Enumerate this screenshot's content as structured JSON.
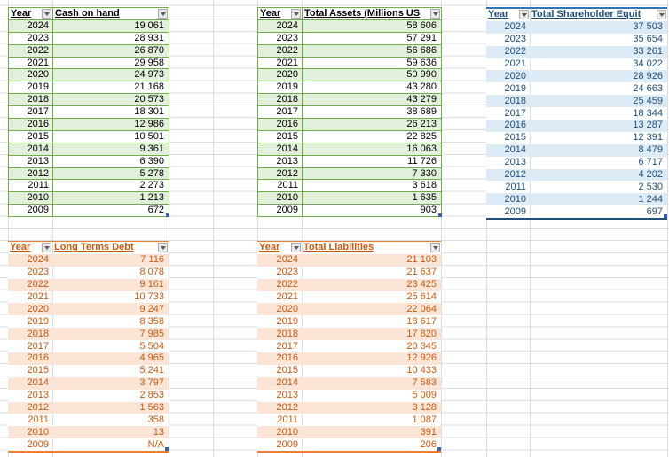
{
  "app": {
    "type": "spreadsheet-grid"
  },
  "colors": {
    "gridline": "#DADFE4",
    "green_border": "#70AD47",
    "green_band": "#E2EFDA",
    "green_text": "#000000",
    "blue_border": "#2E75B6",
    "blue_border_bottom": "#1F4E78",
    "blue_band": "#DDEBF7",
    "blue_text": "#1F4E78",
    "orange_border": "#ED7D31",
    "orange_band": "#FCE4D6",
    "orange_text": "#C55A11",
    "resize_handle": "#3A5FAC"
  },
  "tables": [
    {
      "id": "cash-on-hand",
      "theme": "green",
      "columns": [
        "Year",
        "Cash on hand"
      ],
      "rows": [
        {
          "year": "2024",
          "value": "19 061"
        },
        {
          "year": "2023",
          "value": "28 931"
        },
        {
          "year": "2022",
          "value": "26 870"
        },
        {
          "year": "2021",
          "value": "29 958"
        },
        {
          "year": "2020",
          "value": "24 973"
        },
        {
          "year": "2019",
          "value": "21 168"
        },
        {
          "year": "2018",
          "value": "20 573"
        },
        {
          "year": "2017",
          "value": "18 301"
        },
        {
          "year": "2016",
          "value": "12 986"
        },
        {
          "year": "2015",
          "value": "10 501"
        },
        {
          "year": "2014",
          "value": "9 361"
        },
        {
          "year": "2013",
          "value": "6 390"
        },
        {
          "year": "2012",
          "value": "5 278"
        },
        {
          "year": "2011",
          "value": "2 273"
        },
        {
          "year": "2010",
          "value": "1 213"
        },
        {
          "year": "2009",
          "value": "672"
        }
      ]
    },
    {
      "id": "total-assets",
      "theme": "green",
      "columns": [
        "Year",
        "Total Assets (Millions US"
      ],
      "rows": [
        {
          "year": "2024",
          "value": "58 606"
        },
        {
          "year": "2023",
          "value": "57 291"
        },
        {
          "year": "2022",
          "value": "56 686"
        },
        {
          "year": "2021",
          "value": "59 636"
        },
        {
          "year": "2020",
          "value": "50 990"
        },
        {
          "year": "2019",
          "value": "43 280"
        },
        {
          "year": "2018",
          "value": "43 279"
        },
        {
          "year": "2017",
          "value": "38 689"
        },
        {
          "year": "2016",
          "value": "26 213"
        },
        {
          "year": "2015",
          "value": "22 825"
        },
        {
          "year": "2014",
          "value": "16 063"
        },
        {
          "year": "2013",
          "value": "11 726"
        },
        {
          "year": "2012",
          "value": "7 330"
        },
        {
          "year": "2011",
          "value": "3 618"
        },
        {
          "year": "2010",
          "value": "1 635"
        },
        {
          "year": "2009",
          "value": "903"
        }
      ]
    },
    {
      "id": "shareholder-equity",
      "theme": "blue",
      "columns": [
        "Year",
        "Total Shareholder Equit"
      ],
      "rows": [
        {
          "year": "2024",
          "value": "37 503"
        },
        {
          "year": "2023",
          "value": "35 654"
        },
        {
          "year": "2022",
          "value": "33 261"
        },
        {
          "year": "2021",
          "value": "34 022"
        },
        {
          "year": "2020",
          "value": "28 926"
        },
        {
          "year": "2019",
          "value": "24 663"
        },
        {
          "year": "2018",
          "value": "25 459"
        },
        {
          "year": "2017",
          "value": "18 344"
        },
        {
          "year": "2016",
          "value": "13 287"
        },
        {
          "year": "2015",
          "value": "12 391"
        },
        {
          "year": "2014",
          "value": "8 479"
        },
        {
          "year": "2013",
          "value": "6 717"
        },
        {
          "year": "2012",
          "value": "4 202"
        },
        {
          "year": "2011",
          "value": "2 530"
        },
        {
          "year": "2010",
          "value": "1 244"
        },
        {
          "year": "2009",
          "value": "697"
        }
      ]
    },
    {
      "id": "long-terms-debt",
      "theme": "orange",
      "columns": [
        "Year",
        "Long Terms Debt"
      ],
      "rows": [
        {
          "year": "2024",
          "value": "7 116"
        },
        {
          "year": "2023",
          "value": "8 078"
        },
        {
          "year": "2022",
          "value": "9 161"
        },
        {
          "year": "2021",
          "value": "10 733"
        },
        {
          "year": "2020",
          "value": "9 247"
        },
        {
          "year": "2019",
          "value": "8 358"
        },
        {
          "year": "2018",
          "value": "7 985"
        },
        {
          "year": "2017",
          "value": "5 504"
        },
        {
          "year": "2016",
          "value": "4 965"
        },
        {
          "year": "2015",
          "value": "5 241"
        },
        {
          "year": "2014",
          "value": "3 797"
        },
        {
          "year": "2013",
          "value": "2 853"
        },
        {
          "year": "2012",
          "value": "1 563"
        },
        {
          "year": "2011",
          "value": "358"
        },
        {
          "year": "2010",
          "value": "13"
        },
        {
          "year": "2009",
          "value": "N/A"
        }
      ]
    },
    {
      "id": "total-liabilities",
      "theme": "orange",
      "columns": [
        "Year",
        "Total Liabilities"
      ],
      "rows": [
        {
          "year": "2024",
          "value": "21 103"
        },
        {
          "year": "2023",
          "value": "21 637"
        },
        {
          "year": "2022",
          "value": "23 425"
        },
        {
          "year": "2021",
          "value": "25 614"
        },
        {
          "year": "2020",
          "value": "22 064"
        },
        {
          "year": "2019",
          "value": "18 617"
        },
        {
          "year": "2018",
          "value": "17 820"
        },
        {
          "year": "2017",
          "value": "20 345"
        },
        {
          "year": "2016",
          "value": "12 926"
        },
        {
          "year": "2015",
          "value": "10 433"
        },
        {
          "year": "2014",
          "value": "7 583"
        },
        {
          "year": "2013",
          "value": "5 009"
        },
        {
          "year": "2012",
          "value": "3 128"
        },
        {
          "year": "2011",
          "value": "1 087"
        },
        {
          "year": "2010",
          "value": "391"
        },
        {
          "year": "2009",
          "value": "206"
        }
      ]
    }
  ]
}
